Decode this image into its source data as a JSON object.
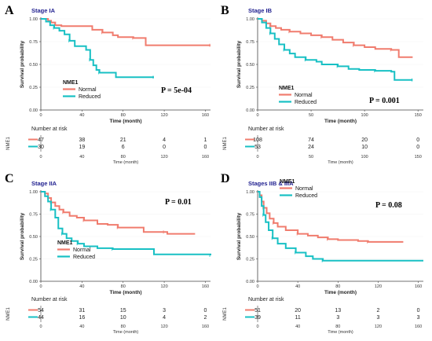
{
  "colors": {
    "normal": "#f07c6e",
    "reduced": "#18c0c4",
    "axis": "#444444",
    "grid": "#f2f2f2"
  },
  "common": {
    "ylabel": "Survival probability",
    "xlabel": "Time (month)",
    "legend_title": "NME1",
    "risk_title": "Number at risk",
    "strata_label": "NME1",
    "y_ticks": [
      "0.00",
      "0.25",
      "0.50",
      "0.75",
      "1.00"
    ]
  },
  "chart_data": [
    {
      "type": "line",
      "panel_label": "A",
      "title": "Stage IA",
      "xlim": [
        0,
        165
      ],
      "ylim": [
        0,
        1
      ],
      "x_ticks": [
        0,
        40,
        80,
        120,
        160
      ],
      "p_value": "P = 5e-04",
      "legend_position": "center-left",
      "series": [
        {
          "name": "Normal",
          "points": [
            [
              0,
              1
            ],
            [
              7,
              0.98
            ],
            [
              10,
              0.96
            ],
            [
              14,
              0.93
            ],
            [
              20,
              0.92
            ],
            [
              50,
              0.88
            ],
            [
              60,
              0.85
            ],
            [
              70,
              0.82
            ],
            [
              75,
              0.8
            ],
            [
              90,
              0.79
            ],
            [
              100,
              0.79
            ],
            [
              102,
              0.71
            ],
            [
              165,
              0.71
            ]
          ]
        },
        {
          "name": "Reduced",
          "points": [
            [
              0,
              1
            ],
            [
              5,
              0.97
            ],
            [
              9,
              0.93
            ],
            [
              13,
              0.9
            ],
            [
              18,
              0.87
            ],
            [
              23,
              0.83
            ],
            [
              28,
              0.76
            ],
            [
              33,
              0.7
            ],
            [
              44,
              0.66
            ],
            [
              48,
              0.55
            ],
            [
              51,
              0.49
            ],
            [
              54,
              0.44
            ],
            [
              57,
              0.41
            ],
            [
              70,
              0.41
            ],
            [
              73,
              0.36
            ],
            [
              110,
              0.36
            ]
          ]
        }
      ],
      "risk_table": {
        "x": [
          0,
          40,
          80,
          120,
          160
        ],
        "rows": [
          {
            "name": "Normal",
            "values": [
              "47",
              "38",
              "21",
              "4",
              "1"
            ]
          },
          {
            "name": "Reduced",
            "values": [
              "30",
              "19",
              "6",
              "0",
              "0"
            ]
          }
        ]
      }
    },
    {
      "type": "line",
      "panel_label": "B",
      "title": "Stage IB",
      "xlim": [
        0,
        155
      ],
      "ylim": [
        0,
        1
      ],
      "x_ticks": [
        0,
        50,
        100,
        150
      ],
      "p_value": "P = 0.001",
      "legend_position": "center-left",
      "series": [
        {
          "name": "Normal",
          "points": [
            [
              0,
              1
            ],
            [
              4,
              0.98
            ],
            [
              8,
              0.95
            ],
            [
              12,
              0.92
            ],
            [
              17,
              0.9
            ],
            [
              22,
              0.88
            ],
            [
              30,
              0.86
            ],
            [
              40,
              0.84
            ],
            [
              50,
              0.82
            ],
            [
              60,
              0.8
            ],
            [
              70,
              0.77
            ],
            [
              80,
              0.74
            ],
            [
              90,
              0.71
            ],
            [
              100,
              0.69
            ],
            [
              110,
              0.67
            ],
            [
              125,
              0.66
            ],
            [
              132,
              0.58
            ],
            [
              145,
              0.58
            ]
          ]
        },
        {
          "name": "Reduced",
          "points": [
            [
              0,
              1
            ],
            [
              4,
              0.96
            ],
            [
              8,
              0.9
            ],
            [
              12,
              0.84
            ],
            [
              16,
              0.78
            ],
            [
              20,
              0.72
            ],
            [
              25,
              0.66
            ],
            [
              30,
              0.62
            ],
            [
              35,
              0.58
            ],
            [
              45,
              0.55
            ],
            [
              55,
              0.53
            ],
            [
              60,
              0.5
            ],
            [
              75,
              0.48
            ],
            [
              85,
              0.45
            ],
            [
              95,
              0.44
            ],
            [
              110,
              0.43
            ],
            [
              125,
              0.42
            ],
            [
              128,
              0.33
            ],
            [
              145,
              0.33
            ]
          ]
        }
      ],
      "risk_table": {
        "x": [
          0,
          50,
          100,
          150
        ],
        "rows": [
          {
            "name": "Normal",
            "values": [
              "108",
              "74",
              "20",
              "0"
            ]
          },
          {
            "name": "Reduced",
            "values": [
              "53",
              "24",
              "10",
              "0"
            ]
          }
        ]
      }
    },
    {
      "type": "line",
      "panel_label": "C",
      "title": "Stage IIA",
      "xlim": [
        0,
        165
      ],
      "ylim": [
        0,
        1
      ],
      "x_ticks": [
        0,
        40,
        80,
        120,
        160
      ],
      "p_value": "P = 0.01",
      "legend_position": "bottom-left",
      "series": [
        {
          "name": "Normal",
          "points": [
            [
              0,
              1
            ],
            [
              4,
              0.98
            ],
            [
              7,
              0.93
            ],
            [
              10,
              0.88
            ],
            [
              14,
              0.84
            ],
            [
              18,
              0.8
            ],
            [
              22,
              0.77
            ],
            [
              28,
              0.73
            ],
            [
              35,
              0.71
            ],
            [
              42,
              0.68
            ],
            [
              55,
              0.64
            ],
            [
              65,
              0.63
            ],
            [
              75,
              0.6
            ],
            [
              90,
              0.6
            ],
            [
              100,
              0.55
            ],
            [
              120,
              0.55
            ],
            [
              123,
              0.53
            ],
            [
              150,
              0.53
            ]
          ]
        },
        {
          "name": "Reduced",
          "points": [
            [
              0,
              1
            ],
            [
              4,
              0.95
            ],
            [
              7,
              0.89
            ],
            [
              10,
              0.8
            ],
            [
              14,
              0.71
            ],
            [
              17,
              0.59
            ],
            [
              21,
              0.53
            ],
            [
              25,
              0.48
            ],
            [
              30,
              0.45
            ],
            [
              36,
              0.42
            ],
            [
              42,
              0.39
            ],
            [
              55,
              0.37
            ],
            [
              70,
              0.36
            ],
            [
              105,
              0.36
            ],
            [
              110,
              0.3
            ],
            [
              165,
              0.29
            ]
          ]
        }
      ],
      "risk_table": {
        "x": [
          0,
          40,
          80,
          120,
          160
        ],
        "rows": [
          {
            "name": "Normal",
            "values": [
              "54",
              "31",
              "15",
              "3",
              "0"
            ]
          },
          {
            "name": "Reduced",
            "values": [
              "44",
              "16",
              "10",
              "4",
              "2"
            ]
          }
        ]
      }
    },
    {
      "type": "line",
      "panel_label": "D",
      "title": "Stages IIB & IIIA",
      "xlim": [
        0,
        165
      ],
      "ylim": [
        0,
        1
      ],
      "x_ticks": [
        0,
        40,
        80,
        120,
        160
      ],
      "p_value": "P = 0.08",
      "legend_position": "top-center",
      "series": [
        {
          "name": "Normal",
          "points": [
            [
              0,
              1
            ],
            [
              2,
              0.96
            ],
            [
              4,
              0.89
            ],
            [
              6,
              0.82
            ],
            [
              9,
              0.76
            ],
            [
              12,
              0.7
            ],
            [
              16,
              0.65
            ],
            [
              20,
              0.61
            ],
            [
              28,
              0.57
            ],
            [
              40,
              0.53
            ],
            [
              50,
              0.51
            ],
            [
              60,
              0.49
            ],
            [
              70,
              0.47
            ],
            [
              80,
              0.46
            ],
            [
              100,
              0.45
            ],
            [
              110,
              0.44
            ],
            [
              145,
              0.44
            ]
          ]
        },
        {
          "name": "Reduced",
          "points": [
            [
              0,
              1
            ],
            [
              2,
              0.94
            ],
            [
              4,
              0.84
            ],
            [
              6,
              0.74
            ],
            [
              8,
              0.66
            ],
            [
              11,
              0.57
            ],
            [
              15,
              0.48
            ],
            [
              20,
              0.42
            ],
            [
              28,
              0.37
            ],
            [
              38,
              0.32
            ],
            [
              48,
              0.28
            ],
            [
              55,
              0.25
            ],
            [
              65,
              0.23
            ],
            [
              165,
              0.23
            ]
          ]
        }
      ],
      "risk_table": {
        "x": [
          0,
          40,
          80,
          120,
          160
        ],
        "rows": [
          {
            "name": "Normal",
            "values": [
              "51",
              "20",
              "13",
              "2",
              "0"
            ]
          },
          {
            "name": "Reduced",
            "values": [
              "39",
              "11",
              "3",
              "3",
              "3"
            ]
          }
        ]
      }
    }
  ]
}
